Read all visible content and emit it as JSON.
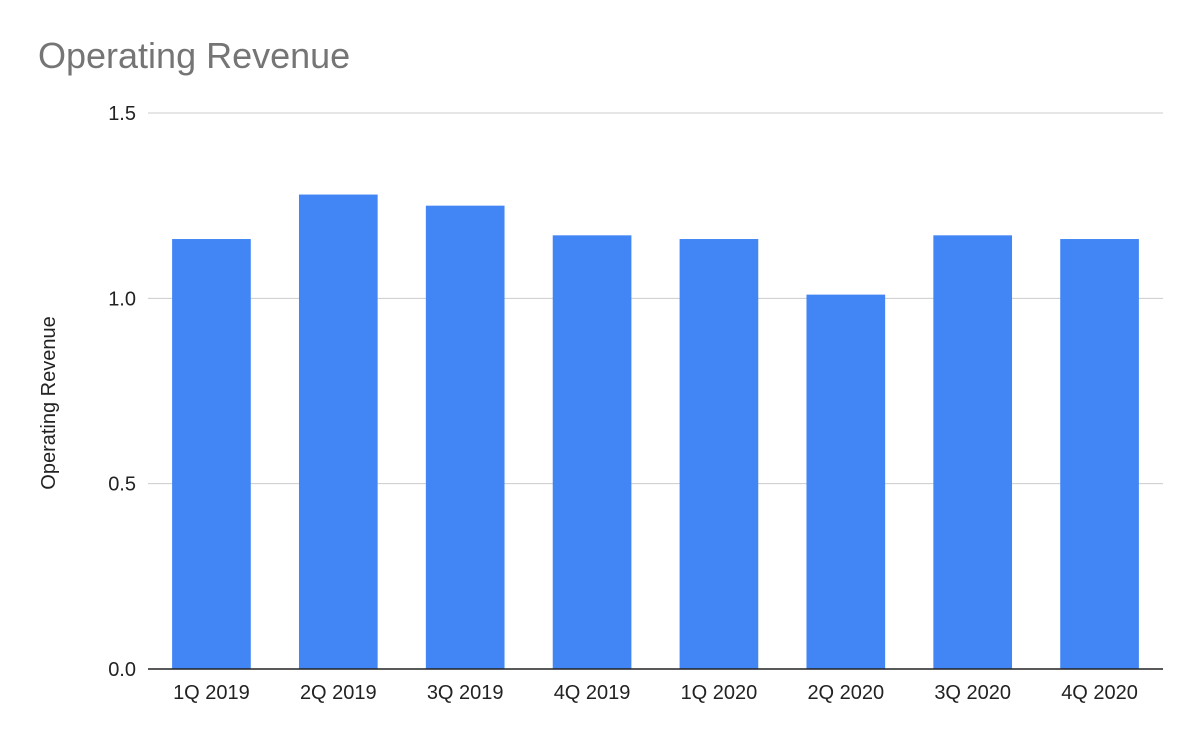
{
  "chart_data": {
    "type": "bar",
    "title": "Operating Revenue",
    "xlabel": "",
    "ylabel": "Operating Revenue",
    "categories": [
      "1Q 2019",
      "2Q 2019",
      "3Q 2019",
      "4Q 2019",
      "1Q 2020",
      "2Q 2020",
      "3Q 2020",
      "4Q 2020"
    ],
    "series": [
      {
        "values": [
          1.16,
          1.28,
          1.25,
          1.17,
          1.16,
          1.01,
          1.17,
          1.16
        ]
      }
    ],
    "ylim": [
      0,
      1.5
    ],
    "yticks": [
      "0.0",
      "0.5",
      "1.0",
      "1.5"
    ],
    "grid": true,
    "legend": "none",
    "colors": {
      "bar": "#4285f4",
      "grid": "#cccccc",
      "axis": "#222222",
      "title": "#757575"
    }
  }
}
